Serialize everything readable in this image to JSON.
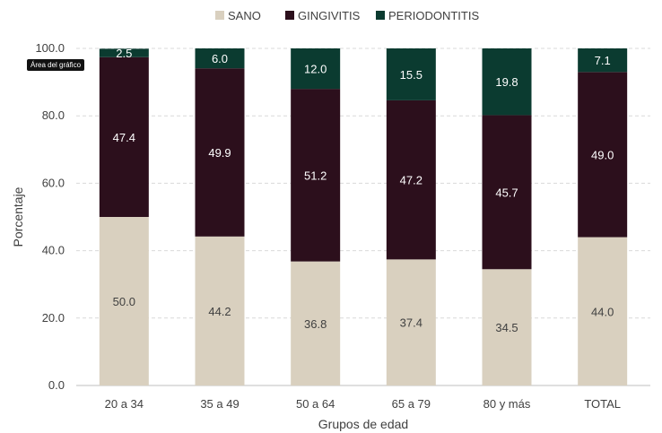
{
  "chart_data": {
    "type": "bar",
    "stacked": true,
    "categories": [
      "20 a 34",
      "35 a 49",
      "50 a 64",
      "65 a 79",
      "80 y más",
      "TOTAL"
    ],
    "series": [
      {
        "name": "SANO",
        "color": "#d9d0bf",
        "values": [
          50.0,
          44.2,
          36.8,
          37.4,
          34.5,
          44.0
        ]
      },
      {
        "name": "GINGIVITIS",
        "color": "#2c0f1c",
        "values": [
          47.4,
          49.9,
          51.2,
          47.2,
          45.7,
          49.0
        ]
      },
      {
        "name": "PERIODONTITIS",
        "color": "#0b3b30",
        "values": [
          2.5,
          6.0,
          12.0,
          15.5,
          19.8,
          7.1
        ]
      }
    ],
    "value_labels": [
      [
        "50.0",
        "44.2",
        "36.8",
        "37.4",
        "34.5",
        "44.0"
      ],
      [
        "47.4",
        "49.9",
        "51.2",
        "47.2",
        "45.7",
        "49.0"
      ],
      [
        "2.5",
        "6.0",
        "12.0",
        "15.5",
        "19.8",
        "7.1"
      ]
    ],
    "y_ticks": [
      "0.0",
      "20.0",
      "40.0",
      "60.0",
      "80.0",
      "100.0"
    ],
    "ylim": [
      0,
      100
    ],
    "xlabel": "Grupos de edad",
    "ylabel": "Porcentaje",
    "legend_position": "top",
    "grid": true
  },
  "tooltip": "Área del gráfico"
}
